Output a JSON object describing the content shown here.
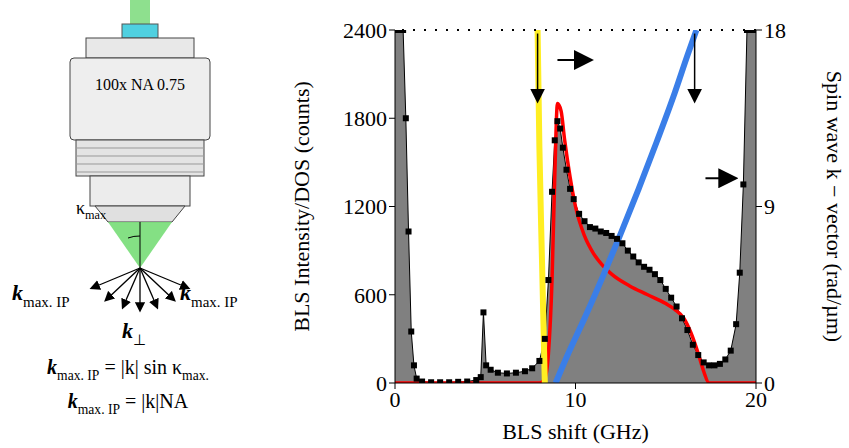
{
  "chart_data": {
    "type": "line",
    "x_label": "BLS shift (GHz)",
    "y_label": "BLS Intensity/DOS (counts)",
    "y2_label": "Spin wave k − vector (rad/µm)",
    "xlim": [
      0,
      20
    ],
    "xticks": [
      0,
      10,
      20
    ],
    "ylim": [
      0,
      2400
    ],
    "yticks": [
      0,
      600,
      1200,
      1800,
      2400
    ],
    "y2lim": [
      0,
      18
    ],
    "y2ticks": [
      0,
      9,
      18
    ],
    "grid": false,
    "series": [
      {
        "type": "area",
        "color": "#808080",
        "marker": "square",
        "x": [
          0,
          0.15,
          0.3,
          0.45,
          0.6,
          0.75,
          0.9,
          1.05,
          1.2,
          1.5,
          2,
          2.5,
          3,
          3.5,
          4,
          4.5,
          4.75,
          4.9,
          5.05,
          5.3,
          5.7,
          6.2,
          6.7,
          7.2,
          7.6,
          8,
          8.3,
          8.5,
          8.7,
          8.85,
          9,
          9.15,
          9.3,
          9.5,
          9.7,
          9.9,
          10.2,
          10.5,
          10.8,
          11.1,
          11.4,
          11.7,
          12,
          12.3,
          12.6,
          12.9,
          13.2,
          13.5,
          13.8,
          14.1,
          14.4,
          14.7,
          15,
          15.3,
          15.6,
          15.9,
          16.2,
          16.5,
          16.8,
          17.1,
          17.4,
          17.7,
          18,
          18.3,
          18.6,
          18.9,
          19.1,
          19.3,
          19.5,
          19.7,
          20
        ],
        "values": [
          2400,
          2400,
          2400,
          2400,
          1800,
          1030,
          350,
          120,
          30,
          10,
          5,
          5,
          5,
          8,
          10,
          20,
          40,
          480,
          120,
          90,
          70,
          65,
          70,
          80,
          100,
          150,
          300,
          700,
          1300,
          1650,
          1780,
          1730,
          1600,
          1450,
          1320,
          1250,
          1150,
          1100,
          1060,
          1050,
          1030,
          1020,
          1000,
          980,
          950,
          900,
          860,
          820,
          790,
          770,
          740,
          700,
          640,
          580,
          520,
          440,
          360,
          260,
          190,
          140,
          120,
          120,
          130,
          160,
          220,
          400,
          750,
          1350,
          2400,
          2400,
          2400
        ]
      },
      {
        "type": "line",
        "color": "#ff0000",
        "x": [
          0,
          8,
          8.3,
          8.5,
          8.7,
          8.85,
          9,
          9.2,
          9.4,
          9.7,
          10,
          10.5,
          11,
          11.5,
          12,
          13,
          14,
          15,
          15.5,
          16,
          16.4,
          16.8,
          17.1,
          17.4,
          20
        ],
        "values": [
          0,
          0,
          30,
          200,
          700,
          1400,
          1900,
          1850,
          1650,
          1400,
          1200,
          1000,
          880,
          800,
          740,
          660,
          600,
          540,
          500,
          440,
          340,
          200,
          80,
          0,
          0
        ]
      },
      {
        "type": "line",
        "color": "#ffee22",
        "axis": "y2",
        "x": [
          8.3,
          8.15,
          8.0,
          7.9
        ],
        "values": [
          0,
          6,
          12,
          18
        ]
      },
      {
        "type": "line",
        "color": "#3a7ee8",
        "axis": "y2",
        "x": [
          8.9,
          9.5,
          10.5,
          11.5,
          12.5,
          13.5,
          14.5,
          15.5,
          16.2,
          16.7
        ],
        "values": [
          0,
          1.3,
          3.3,
          5.4,
          7.6,
          9.9,
          12.3,
          14.8,
          16.7,
          18
        ]
      }
    ]
  },
  "diagram": {
    "objective_label": "100x NA 0.75",
    "angle_label": [
      {
        "t": "κ",
        "sub": "max"
      }
    ],
    "k_left": [
      {
        "t": "k",
        "sub": "max. IP"
      }
    ],
    "k_right": [
      {
        "t": "k",
        "sub": "max. IP"
      }
    ],
    "k_perp": [
      {
        "t": "k",
        "sub": "⊥"
      }
    ],
    "equations": [
      [
        {
          "t": "k",
          "sub": "max. IP"
        },
        {
          "t": " = |k| sin κ",
          "sub": "max."
        }
      ],
      [
        {
          "t": "k",
          "sub": "max. IP"
        },
        {
          "t": " = |k|NA"
        }
      ]
    ]
  }
}
